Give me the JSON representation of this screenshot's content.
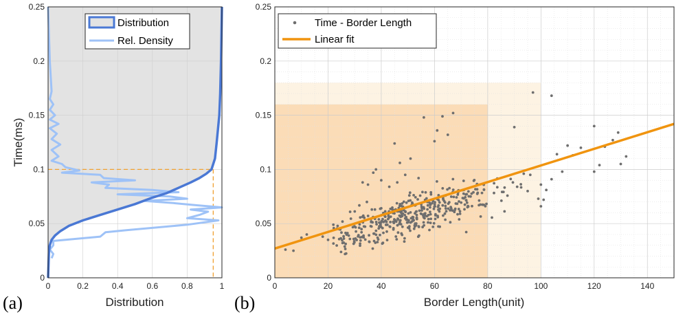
{
  "panel_a_label": "(a)",
  "panel_b_label": "(b)",
  "chart_data": [
    {
      "type": "line",
      "panel": "(a)",
      "xlabel": "Distribution",
      "ylabel": "Time(ms)",
      "xlim": [
        0,
        1
      ],
      "ylim": [
        0,
        0.25
      ],
      "xticks": [
        "0",
        "0.2",
        "0.4",
        "0.6",
        "0.8",
        "1"
      ],
      "yticks": [
        "0",
        "0.05",
        "0.1",
        "0.15",
        "0.2",
        "0.25"
      ],
      "grid": true,
      "legend": "top-right",
      "legend_labels": {
        "distribution": "Distribution",
        "density": "Rel. Density"
      },
      "series": [
        {
          "name": "Distribution",
          "color": "#4a78d4",
          "fill": "#e3e3e3",
          "points": [
            [
              0,
              0
            ],
            [
              0.005,
              0.025
            ],
            [
              0.01,
              0.03
            ],
            [
              0.02,
              0.035
            ],
            [
              0.04,
              0.039
            ],
            [
              0.07,
              0.043
            ],
            [
              0.12,
              0.048
            ],
            [
              0.2,
              0.053
            ],
            [
              0.3,
              0.058
            ],
            [
              0.4,
              0.063
            ],
            [
              0.5,
              0.068
            ],
            [
              0.6,
              0.074
            ],
            [
              0.68,
              0.078
            ],
            [
              0.75,
              0.083
            ],
            [
              0.82,
              0.088
            ],
            [
              0.87,
              0.092
            ],
            [
              0.91,
              0.096
            ],
            [
              0.94,
              0.1
            ],
            [
              0.96,
              0.11
            ],
            [
              0.97,
              0.125
            ],
            [
              0.985,
              0.15
            ],
            [
              0.99,
              0.17
            ],
            [
              0.995,
              0.2
            ],
            [
              1,
              0.25
            ]
          ]
        },
        {
          "name": "Rel. Density",
          "color": "#9ec2f7",
          "points": [
            [
              0.02,
              0.018
            ],
            [
              0.03,
              0.022
            ],
            [
              0.01,
              0.026
            ],
            [
              0.03,
              0.03
            ],
            [
              0.03,
              0.034
            ],
            [
              0.3,
              0.038
            ],
            [
              0.33,
              0.042
            ],
            [
              0.45,
              0.044
            ],
            [
              0.8,
              0.049
            ],
            [
              0.98,
              0.053
            ],
            [
              0.8,
              0.055
            ],
            [
              0.87,
              0.058
            ],
            [
              0.92,
              0.061
            ],
            [
              0.82,
              0.063
            ],
            [
              1.0,
              0.065
            ],
            [
              0.85,
              0.067
            ],
            [
              0.72,
              0.069
            ],
            [
              0.55,
              0.071
            ],
            [
              0.8,
              0.073
            ],
            [
              0.7,
              0.075
            ],
            [
              0.4,
              0.077
            ],
            [
              0.75,
              0.079
            ],
            [
              0.6,
              0.081
            ],
            [
              0.33,
              0.083
            ],
            [
              0.35,
              0.086
            ],
            [
              0.25,
              0.088
            ],
            [
              0.5,
              0.09
            ],
            [
              0.32,
              0.092
            ],
            [
              0.3,
              0.095
            ],
            [
              0.08,
              0.097
            ],
            [
              0.18,
              0.099
            ],
            [
              0.1,
              0.102
            ],
            [
              0.08,
              0.105
            ],
            [
              0.02,
              0.108
            ],
            [
              0.06,
              0.112
            ],
            [
              0.02,
              0.118
            ],
            [
              0.07,
              0.123
            ],
            [
              0.02,
              0.128
            ],
            [
              0.05,
              0.133
            ],
            [
              0.01,
              0.138
            ],
            [
              0.06,
              0.142
            ],
            [
              0.01,
              0.146
            ],
            [
              0.04,
              0.15
            ],
            [
              0.01,
              0.155
            ],
            [
              0.03,
              0.16
            ],
            [
              0.01,
              0.165
            ],
            [
              0.02,
              0.172
            ],
            [
              0.01,
              0.2
            ],
            [
              0.0,
              0.25
            ]
          ]
        }
      ],
      "reference": {
        "x": 0.95,
        "y": 0.1,
        "color": "#f0a030"
      }
    },
    {
      "type": "scatter",
      "panel": "(b)",
      "xlabel": "Border Length(unit)",
      "ylabel": "",
      "xlim": [
        0,
        150
      ],
      "ylim": [
        0,
        0.25
      ],
      "xticks": [
        "0",
        "20",
        "40",
        "60",
        "80",
        "100",
        "120",
        "140"
      ],
      "yticks": [
        "0",
        "0.05",
        "0.1",
        "0.15",
        "0.2",
        "0.25"
      ],
      "grid": true,
      "legend": "top-left",
      "legend_labels": {
        "scatter": "Time - Border Length",
        "fit": "Linear fit"
      },
      "scatter_color": "#6e6e6e",
      "fit": {
        "name": "Linear fit",
        "color": "#f0940f",
        "x": [
          0,
          150
        ],
        "y": [
          0.027,
          0.142
        ]
      },
      "regions": [
        {
          "x": [
            0,
            100
          ],
          "y": [
            0,
            0.18
          ],
          "color": "#fdf3e3"
        },
        {
          "x": [
            0,
            80
          ],
          "y": [
            0,
            0.16
          ],
          "color": "#fbdcb7"
        }
      ],
      "outliers": [
        [
          97,
          0.171
        ],
        [
          104,
          0.168
        ],
        [
          60,
          0.126
        ],
        [
          67,
          0.152
        ],
        [
          63,
          0.149
        ],
        [
          56,
          0.148
        ],
        [
          61,
          0.136
        ],
        [
          65,
          0.132
        ],
        [
          90,
          0.139
        ],
        [
          120,
          0.14
        ],
        [
          129,
          0.134
        ],
        [
          127,
          0.127
        ],
        [
          124,
          0.121
        ],
        [
          115,
          0.12
        ],
        [
          110,
          0.122
        ],
        [
          112,
          0.113
        ],
        [
          106,
          0.114
        ],
        [
          132,
          0.112
        ],
        [
          130,
          0.105
        ],
        [
          122,
          0.104
        ],
        [
          120,
          0.098
        ],
        [
          108,
          0.098
        ],
        [
          96,
          0.095
        ],
        [
          104,
          0.091
        ],
        [
          100,
          0.086
        ],
        [
          102,
          0.081
        ],
        [
          95,
          0.08
        ],
        [
          101,
          0.072
        ],
        [
          99,
          0.073
        ],
        [
          100,
          0.066
        ],
        [
          51,
          0.11
        ],
        [
          47,
          0.106
        ],
        [
          45,
          0.124
        ],
        [
          37,
          0.097
        ],
        [
          40,
          0.09
        ],
        [
          35,
          0.086
        ],
        [
          33,
          0.088
        ],
        [
          38,
          0.1
        ],
        [
          49,
          0.095
        ],
        [
          54,
          0.092
        ],
        [
          46,
          0.088
        ],
        [
          43,
          0.084
        ],
        [
          4,
          0.026
        ],
        [
          7,
          0.025
        ],
        [
          12,
          0.04
        ],
        [
          10,
          0.037
        ],
        [
          18,
          0.038
        ],
        [
          20,
          0.035
        ],
        [
          24,
          0.045
        ],
        [
          22,
          0.049
        ]
      ],
      "cloud_seed": 7,
      "cloud_count": 420
    }
  ]
}
